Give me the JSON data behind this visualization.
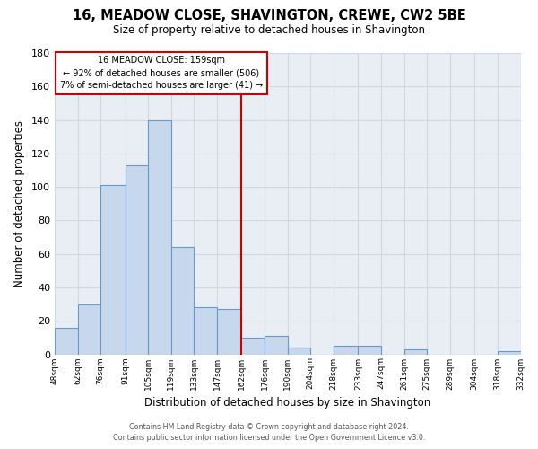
{
  "title": "16, MEADOW CLOSE, SHAVINGTON, CREWE, CW2 5BE",
  "subtitle": "Size of property relative to detached houses in Shavington",
  "xlabel": "Distribution of detached houses by size in Shavington",
  "ylabel": "Number of detached properties",
  "bar_edges": [
    48,
    62,
    76,
    91,
    105,
    119,
    133,
    147,
    162,
    176,
    190,
    204,
    218,
    233,
    247,
    261,
    275,
    289,
    304,
    318,
    332
  ],
  "bar_heights": [
    16,
    30,
    101,
    113,
    140,
    64,
    28,
    27,
    10,
    11,
    4,
    0,
    5,
    5,
    0,
    3,
    0,
    0,
    0,
    2
  ],
  "bar_color": "#c8d8ec",
  "bar_edge_color": "#6699cc",
  "tick_labels": [
    "48sqm",
    "62sqm",
    "76sqm",
    "91sqm",
    "105sqm",
    "119sqm",
    "133sqm",
    "147sqm",
    "162sqm",
    "176sqm",
    "190sqm",
    "204sqm",
    "218sqm",
    "233sqm",
    "247sqm",
    "261sqm",
    "275sqm",
    "289sqm",
    "304sqm",
    "318sqm",
    "332sqm"
  ],
  "vline_x": 162,
  "vline_color": "#cc0000",
  "ylim": [
    0,
    180
  ],
  "yticks": [
    0,
    20,
    40,
    60,
    80,
    100,
    120,
    140,
    160,
    180
  ],
  "annotation_title": "16 MEADOW CLOSE: 159sqm",
  "annotation_line1": "← 92% of detached houses are smaller (506)",
  "annotation_line2": "7% of semi-detached houses are larger (41) →",
  "annotation_box_color": "#ffffff",
  "annotation_box_edge": "#cc0000",
  "footer1": "Contains HM Land Registry data © Crown copyright and database right 2024.",
  "footer2": "Contains public sector information licensed under the Open Government Licence v3.0.",
  "bg_color": "#ffffff",
  "plot_bg_color": "#e8eef4",
  "grid_color": "#d0d8e0"
}
